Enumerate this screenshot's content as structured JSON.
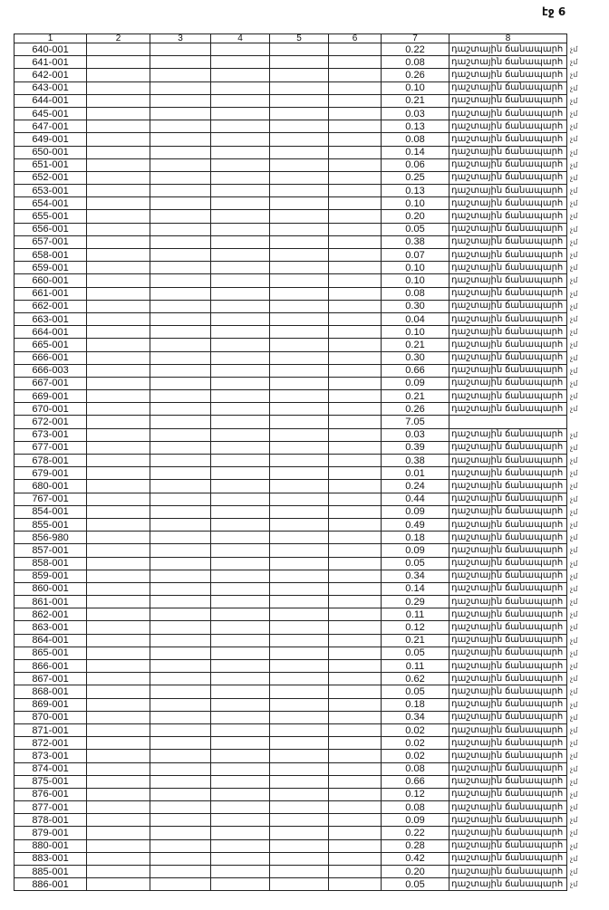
{
  "page_label": "էջ 6",
  "headers": [
    "1",
    "2",
    "3",
    "4",
    "5",
    "6",
    "7",
    "8"
  ],
  "rows": [
    [
      "640-001",
      "0.22",
      "դաշտային ճանապարհ",
      "չմ"
    ],
    [
      "641-001",
      "0.08",
      "դաշտային ճանապարհ",
      "չմ"
    ],
    [
      "642-001",
      "0.26",
      "դաշտային ճանապարհ",
      "չմ"
    ],
    [
      "643-001",
      "0.10",
      "դաշտային ճանապարհ",
      "չմ"
    ],
    [
      "644-001",
      "0.21",
      "դաշտային ճանապարհ",
      "չմ"
    ],
    [
      "645-001",
      "0.03",
      "դաշտային ճանապարհ",
      "չմ"
    ],
    [
      "647-001",
      "0.13",
      "դաշտային ճանապարհ",
      "չմ"
    ],
    [
      "649-001",
      "0.08",
      "դաշտային ճանապարհ",
      "չմ"
    ],
    [
      "650-001",
      "0.14",
      "դաշտային ճանապարհ",
      "չմ"
    ],
    [
      "651-001",
      "0.06",
      "դաշտային ճանապարհ",
      "չմ"
    ],
    [
      "652-001",
      "0.25",
      "դաշտային ճանապարհ",
      "չմ"
    ],
    [
      "653-001",
      "0.13",
      "դաշտային ճանապարհ",
      "չմ"
    ],
    [
      "654-001",
      "0.10",
      "դաշտային ճանապարհ",
      "չմ"
    ],
    [
      "655-001",
      "0.20",
      "դաշտային ճանապարհ",
      "չմ"
    ],
    [
      "656-001",
      "0.05",
      "դաշտային ճանապարհ",
      "չմ"
    ],
    [
      "657-001",
      "0.38",
      "դաշտային ճանապարհ",
      "չմ"
    ],
    [
      "658-001",
      "0.07",
      "դաշտային ճանապարհ",
      "չմ"
    ],
    [
      "659-001",
      "0.10",
      "դաշտային ճանապարհ",
      "չմ"
    ],
    [
      "660-001",
      "0.10",
      "դաշտային ճանապարհ",
      "չմ"
    ],
    [
      "661-001",
      "0.08",
      "դաշտային ճանապարհ",
      "չմ"
    ],
    [
      "662-001",
      "0.30",
      "դաշտային ճանապարհ",
      "չմ"
    ],
    [
      "663-001",
      "0.04",
      "դաշտային ճանապարհ",
      "չմ"
    ],
    [
      "664-001",
      "0.10",
      "դաշտային ճանապարհ",
      "չմ"
    ],
    [
      "665-001",
      "0.21",
      "դաշտային ճանապարհ",
      "չմ"
    ],
    [
      "666-001",
      "0.30",
      "դաշտային ճանապարհ",
      "չմ"
    ],
    [
      "666-003",
      "0.66",
      "դաշտային ճանապարհ",
      "չմ"
    ],
    [
      "667-001",
      "0.09",
      "դաշտային ճանապարհ",
      "չմ"
    ],
    [
      "669-001",
      "0.21",
      "դաշտային ճանապարհ",
      "չմ"
    ],
    [
      "670-001",
      "0.26",
      "դաշտային ճանապարհ",
      "չմ"
    ],
    [
      "672-001",
      "7.05",
      "",
      ""
    ],
    [
      "673-001",
      "0.03",
      "դաշտային ճանապարհ",
      "չմ"
    ],
    [
      "677-001",
      "0.39",
      "դաշտային ճանապարհ",
      "չմ"
    ],
    [
      "678-001",
      "0.38",
      "դաշտային ճանապարհ",
      "չմ"
    ],
    [
      "679-001",
      "0.01",
      "դաշտային ճանապարհ",
      "չմ"
    ],
    [
      "680-001",
      "0.24",
      "դաշտային ճանապարհ",
      "չմ"
    ],
    [
      "767-001",
      "0.44",
      "դաշտային ճանապարհ",
      "չմ"
    ],
    [
      "854-001",
      "0.09",
      "դաշտային ճանապարհ",
      "չմ"
    ],
    [
      "855-001",
      "0.49",
      "դաշտային ճանապարհ",
      "չմ"
    ],
    [
      "856-980",
      "0.18",
      "դաշտային ճանապարհ",
      "չմ"
    ],
    [
      "857-001",
      "0.09",
      "դաշտային ճանապարհ",
      "չմ"
    ],
    [
      "858-001",
      "0.05",
      "դաշտային ճանապարհ",
      "չմ"
    ],
    [
      "859-001",
      "0.34",
      "դաշտային ճանապարհ",
      "չմ"
    ],
    [
      "860-001",
      "0.14",
      "դաշտային ճանապարհ",
      "չմ"
    ],
    [
      "861-001",
      "0.29",
      "դաշտային ճանապարհ",
      "չմ"
    ],
    [
      "862-001",
      "0.11",
      "դաշտային ճանապարհ",
      "չմ"
    ],
    [
      "863-001",
      "0.12",
      "դաշտային ճանապարհ",
      "չմ"
    ],
    [
      "864-001",
      "0.21",
      "դաշտային ճանապարհ",
      "չմ"
    ],
    [
      "865-001",
      "0.05",
      "դաշտային ճանապարհ",
      "չմ"
    ],
    [
      "866-001",
      "0.11",
      "դաշտային ճանապարհ",
      "չմ"
    ],
    [
      "867-001",
      "0.62",
      "դաշտային ճանապարհ",
      "չմ"
    ],
    [
      "868-001",
      "0.05",
      "դաշտային ճանապարհ",
      "չմ"
    ],
    [
      "869-001",
      "0.18",
      "դաշտային ճանապարհ",
      "չմ"
    ],
    [
      "870-001",
      "0.34",
      "դաշտային ճանապարհ",
      "չմ"
    ],
    [
      "871-001",
      "0.02",
      "դաշտային ճանապարհ",
      "չմ"
    ],
    [
      "872-001",
      "0.02",
      "դաշտային ճանապարհ",
      "չմ"
    ],
    [
      "873-001",
      "0.02",
      "դաշտային ճանապարհ",
      "չմ"
    ],
    [
      "874-001",
      "0.08",
      "դաշտային ճանապարհ",
      "չմ"
    ],
    [
      "875-001",
      "0.66",
      "դաշտային ճանապարհ",
      "չմ"
    ],
    [
      "876-001",
      "0.12",
      "դաշտային ճանապարհ",
      "չմ"
    ],
    [
      "877-001",
      "0.08",
      "դաշտային ճանապարհ",
      "չմ"
    ],
    [
      "878-001",
      "0.09",
      "դաշտային ճանապարհ",
      "չմ"
    ],
    [
      "879-001",
      "0.22",
      "դաշտային ճանապարհ",
      "չմ"
    ],
    [
      "880-001",
      "0.28",
      "դաշտային ճանապարհ",
      "չմ"
    ],
    [
      "883-001",
      "0.42",
      "դաշտային ճանապարհ",
      "չմ"
    ],
    [
      "885-001",
      "0.20",
      "դաշտային ճանապարհ",
      "չմ"
    ],
    [
      "886-001",
      "0.05",
      "դաշտային ճանապարհ",
      "չմ"
    ]
  ]
}
